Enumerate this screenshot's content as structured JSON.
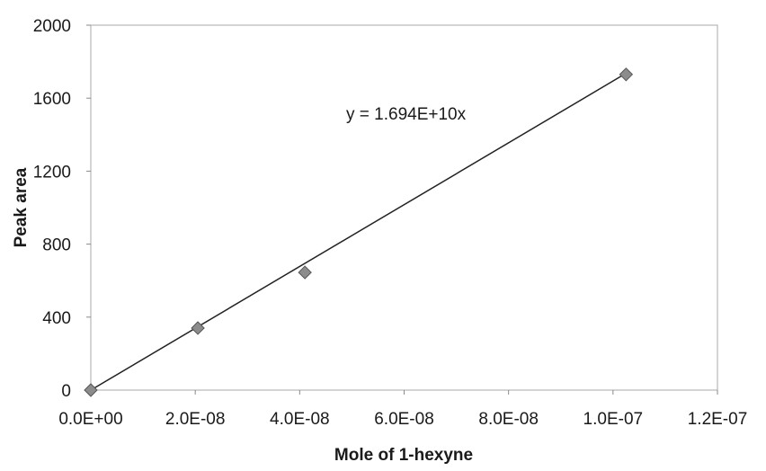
{
  "chart_data": {
    "type": "scatter",
    "title": "",
    "xlabel": "Mole of 1-hexyne",
    "ylabel": "Peak area",
    "xlim": [
      0,
      1.2e-07
    ],
    "ylim": [
      0,
      2000
    ],
    "x_ticks": [
      0,
      2e-08,
      4e-08,
      6e-08,
      8e-08,
      1e-07,
      1.2e-07
    ],
    "x_tick_labels": [
      "0.0E+00",
      "2.0E-08",
      "4.0E-08",
      "6.0E-08",
      "8.0E-08",
      "1.0E-07",
      "1.2E-07"
    ],
    "y_ticks": [
      0,
      400,
      800,
      1200,
      1600,
      2000
    ],
    "y_tick_labels": [
      "0",
      "400",
      "800",
      "1200",
      "1600",
      "2000"
    ],
    "grid": false,
    "series": [
      {
        "marker": "diamond",
        "color": "#8c8c8c",
        "points": [
          {
            "x": 0,
            "y": 0
          },
          {
            "x": 2.05e-08,
            "y": 340
          },
          {
            "x": 4.1e-08,
            "y": 645
          },
          {
            "x": 1.025e-07,
            "y": 1730
          }
        ]
      }
    ],
    "trendline": {
      "slope": 16940000000.0,
      "intercept": 0,
      "equation": "y = 1.694E+10x",
      "color": "#222222"
    }
  }
}
